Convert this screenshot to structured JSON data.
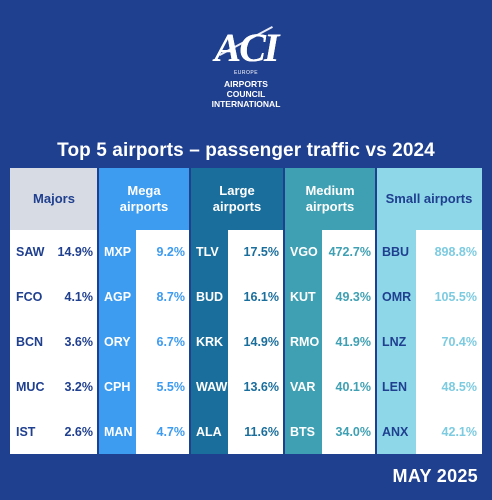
{
  "logo": {
    "mark": "ACI",
    "region": "EUROPE",
    "name_line1": "AIRPORTS COUNCIL",
    "name_line2": "INTERNATIONAL"
  },
  "title": "Top 5 airports – passenger traffic vs 2024",
  "footer": "MAY 2025",
  "columns": [
    {
      "header": "Majors",
      "header_bg": "#d7dbe3",
      "header_color": "#1f3f8f",
      "code_bg": "#ffffff",
      "code_color": "#1f3f8f",
      "value_color": "#1f3f8f",
      "rows": [
        {
          "code": "SAW",
          "value": "14.9%"
        },
        {
          "code": "FCO",
          "value": "4.1%"
        },
        {
          "code": "BCN",
          "value": "3.6%"
        },
        {
          "code": "MUC",
          "value": "3.2%"
        },
        {
          "code": "IST",
          "value": "2.6%"
        }
      ]
    },
    {
      "header": "Mega airports",
      "header_bg": "#3d9bf0",
      "header_color": "#ffffff",
      "code_bg": "#3d9bf0",
      "code_color": "#ffffff",
      "value_color": "#3d9bf0",
      "rows": [
        {
          "code": "MXP",
          "value": "9.2%"
        },
        {
          "code": "AGP",
          "value": "8.7%"
        },
        {
          "code": "ORY",
          "value": "6.7%"
        },
        {
          "code": "CPH",
          "value": "5.5%"
        },
        {
          "code": "MAN",
          "value": "4.7%"
        }
      ]
    },
    {
      "header": "Large airports",
      "header_bg": "#1a6e9c",
      "header_color": "#ffffff",
      "code_bg": "#1a6e9c",
      "code_color": "#ffffff",
      "value_color": "#1a6e9c",
      "rows": [
        {
          "code": "TLV",
          "value": "17.5%"
        },
        {
          "code": "BUD",
          "value": "16.1%"
        },
        {
          "code": "KRK",
          "value": "14.9%"
        },
        {
          "code": "WAW",
          "value": "13.6%"
        },
        {
          "code": "ALA",
          "value": "11.6%"
        }
      ]
    },
    {
      "header": "Medium airports",
      "header_bg": "#3fa0b3",
      "header_color": "#ffffff",
      "code_bg": "#3fa0b3",
      "code_color": "#ffffff",
      "value_color": "#3fa0b3",
      "rows": [
        {
          "code": "VGO",
          "value": "472.7%"
        },
        {
          "code": "KUT",
          "value": "49.3%"
        },
        {
          "code": "RMO",
          "value": "41.9%"
        },
        {
          "code": "VAR",
          "value": "40.1%"
        },
        {
          "code": "BTS",
          "value": "34.0%"
        }
      ]
    },
    {
      "header": "Small airports",
      "header_bg": "#8dd7e8",
      "header_color": "#1f3f8f",
      "code_bg": "#8dd7e8",
      "code_color": "#1f3f8f",
      "value_color": "#7ccbe0",
      "rows": [
        {
          "code": "BBU",
          "value": "898.8%"
        },
        {
          "code": "OMR",
          "value": "105.5%"
        },
        {
          "code": "LNZ",
          "value": "70.4%"
        },
        {
          "code": "LEN",
          "value": "48.5%"
        },
        {
          "code": "ANX",
          "value": "42.1%"
        }
      ]
    }
  ]
}
